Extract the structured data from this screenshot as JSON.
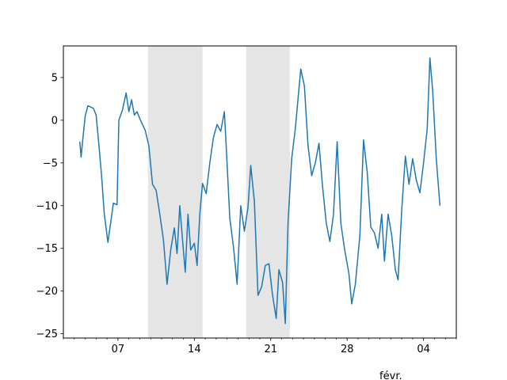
{
  "chart_data": {
    "type": "line",
    "title": "",
    "xlabel": "",
    "ylabel": "",
    "x_axis": "date",
    "xlim": [
      "2023-01-02",
      "2023-02-07"
    ],
    "ylim": [
      -25.5,
      8.7
    ],
    "yticks": [
      5,
      0,
      -5,
      -10,
      -15,
      -20,
      -25
    ],
    "ytick_labels": [
      "5",
      "0",
      "−5",
      "−10",
      "−15",
      "−20",
      "−25"
    ],
    "xticks": [
      {
        "x": "2023-01-07",
        "label": "07"
      },
      {
        "x": "2023-01-14",
        "label": "14"
      },
      {
        "x": "2023-01-21",
        "label": "21"
      },
      {
        "x": "2023-01-28",
        "label": "28"
      },
      {
        "x": "2023-02-04",
        "label": "04"
      }
    ],
    "month_label": {
      "x": "2023-02-01",
      "label": "févr."
    },
    "grid": false,
    "shaded_spans": [
      {
        "start": "2023-01-09 18:00",
        "end": "2023-01-14 18:00",
        "color": "#e5e5e5"
      },
      {
        "start": "2023-01-18 18:00",
        "end": "2023-01-22 18:00",
        "color": "#e5e5e5"
      }
    ],
    "series": [
      {
        "color": "#1f77b4",
        "points": [
          [
            "2023-01-03 12:00",
            -2.5
          ],
          [
            "2023-01-03 15:00",
            -4.3
          ],
          [
            "2023-01-03 18:00",
            -2.6
          ],
          [
            "2023-01-04 00:00",
            0.5
          ],
          [
            "2023-01-04 06:00",
            1.7
          ],
          [
            "2023-01-04 18:00",
            1.4
          ],
          [
            "2023-01-05 00:00",
            0.6
          ],
          [
            "2023-01-05 06:00",
            -2.8
          ],
          [
            "2023-01-05 12:00",
            -6.5
          ],
          [
            "2023-01-05 18:00",
            -11.0
          ],
          [
            "2023-01-06 02:00",
            -14.3
          ],
          [
            "2023-01-06 08:00",
            -12.0
          ],
          [
            "2023-01-06 14:00",
            -9.7
          ],
          [
            "2023-01-06 22:00",
            -9.9
          ],
          [
            "2023-01-07 02:00",
            0.0
          ],
          [
            "2023-01-07 10:00",
            1.2
          ],
          [
            "2023-01-07 18:00",
            3.2
          ],
          [
            "2023-01-08 00:00",
            1.0
          ],
          [
            "2023-01-08 06:00",
            2.4
          ],
          [
            "2023-01-08 12:00",
            0.6
          ],
          [
            "2023-01-08 18:00",
            1.0
          ],
          [
            "2023-01-09 00:00",
            0.2
          ],
          [
            "2023-01-09 12:00",
            -1.2
          ],
          [
            "2023-01-09 20:00",
            -3.0
          ],
          [
            "2023-01-10 04:00",
            -7.5
          ],
          [
            "2023-01-10 12:00",
            -8.2
          ],
          [
            "2023-01-10 20:00",
            -11.0
          ],
          [
            "2023-01-11 04:00",
            -14.0
          ],
          [
            "2023-01-11 12:00",
            -19.2
          ],
          [
            "2023-01-11 20:00",
            -15.2
          ],
          [
            "2023-01-12 04:00",
            -12.6
          ],
          [
            "2023-01-12 10:00",
            -15.6
          ],
          [
            "2023-01-12 16:00",
            -10.0
          ],
          [
            "2023-01-12 22:00",
            -14.0
          ],
          [
            "2023-01-13 04:00",
            -17.8
          ],
          [
            "2023-01-13 10:00",
            -11.0
          ],
          [
            "2023-01-13 16:00",
            -15.2
          ],
          [
            "2023-01-14 00:00",
            -14.4
          ],
          [
            "2023-01-14 06:00",
            -17.0
          ],
          [
            "2023-01-14 12:00",
            -11.0
          ],
          [
            "2023-01-14 18:00",
            -7.4
          ],
          [
            "2023-01-15 02:00",
            -8.6
          ],
          [
            "2023-01-15 10:00",
            -5.0
          ],
          [
            "2023-01-15 18:00",
            -2.0
          ],
          [
            "2023-01-16 02:00",
            -0.5
          ],
          [
            "2023-01-16 10:00",
            -1.3
          ],
          [
            "2023-01-16 18:00",
            1.0
          ],
          [
            "2023-01-16 22:00",
            -3.0
          ],
          [
            "2023-01-17 06:00",
            -11.5
          ],
          [
            "2023-01-17 14:00",
            -14.8
          ],
          [
            "2023-01-17 22:00",
            -19.2
          ],
          [
            "2023-01-18 06:00",
            -10.0
          ],
          [
            "2023-01-18 14:00",
            -13.0
          ],
          [
            "2023-01-18 22:00",
            -10.2
          ],
          [
            "2023-01-19 04:00",
            -5.3
          ],
          [
            "2023-01-19 12:00",
            -9.5
          ],
          [
            "2023-01-19 20:00",
            -20.5
          ],
          [
            "2023-01-20 04:00",
            -19.5
          ],
          [
            "2023-01-20 12:00",
            -17.0
          ],
          [
            "2023-01-20 20:00",
            -16.8
          ],
          [
            "2023-01-21 04:00",
            -20.5
          ],
          [
            "2023-01-21 12:00",
            -23.2
          ],
          [
            "2023-01-21 18:00",
            -17.5
          ],
          [
            "2023-01-22 02:00",
            -19.0
          ],
          [
            "2023-01-22 08:00",
            -23.8
          ],
          [
            "2023-01-22 14:00",
            -12.0
          ],
          [
            "2023-01-22 22:00",
            -4.5
          ],
          [
            "2023-01-23 06:00",
            -1.0
          ],
          [
            "2023-01-23 12:00",
            2.5
          ],
          [
            "2023-01-23 18:00",
            6.0
          ],
          [
            "2023-01-24 02:00",
            4.0
          ],
          [
            "2023-01-24 10:00",
            -3.0
          ],
          [
            "2023-01-24 18:00",
            -6.5
          ],
          [
            "2023-01-25 02:00",
            -5.0
          ],
          [
            "2023-01-25 10:00",
            -2.7
          ],
          [
            "2023-01-25 18:00",
            -7.8
          ],
          [
            "2023-01-26 02:00",
            -12.0
          ],
          [
            "2023-01-26 10:00",
            -14.2
          ],
          [
            "2023-01-26 18:00",
            -11.0
          ],
          [
            "2023-01-27 02:00",
            -2.5
          ],
          [
            "2023-01-27 10:00",
            -12.0
          ],
          [
            "2023-01-27 18:00",
            -15.0
          ],
          [
            "2023-01-28 04:00",
            -18.0
          ],
          [
            "2023-01-28 10:00",
            -21.5
          ],
          [
            "2023-01-28 18:00",
            -19.2
          ],
          [
            "2023-01-29 04:00",
            -13.5
          ],
          [
            "2023-01-29 12:00",
            -2.3
          ],
          [
            "2023-01-29 20:00",
            -6.0
          ],
          [
            "2023-01-30 04:00",
            -12.5
          ],
          [
            "2023-01-30 12:00",
            -13.2
          ],
          [
            "2023-01-30 20:00",
            -15.0
          ],
          [
            "2023-01-31 04:00",
            -11.0
          ],
          [
            "2023-01-31 10:00",
            -16.5
          ],
          [
            "2023-01-31 18:00",
            -11.0
          ],
          [
            "2023-02-01 02:00",
            -13.5
          ],
          [
            "2023-02-01 10:00",
            -17.5
          ],
          [
            "2023-02-01 16:00",
            -18.7
          ],
          [
            "2023-02-02 00:00",
            -10.5
          ],
          [
            "2023-02-02 08:00",
            -4.2
          ],
          [
            "2023-02-02 16:00",
            -7.5
          ],
          [
            "2023-02-03 00:00",
            -4.5
          ],
          [
            "2023-02-03 08:00",
            -7.0
          ],
          [
            "2023-02-03 16:00",
            -8.5
          ],
          [
            "2023-02-04 00:00",
            -5.0
          ],
          [
            "2023-02-04 08:00",
            -1.0
          ],
          [
            "2023-02-04 14:00",
            7.3
          ],
          [
            "2023-02-04 20:00",
            3.5
          ],
          [
            "2023-02-05 04:00",
            -4.5
          ],
          [
            "2023-02-05 12:00",
            -10.0
          ]
        ]
      }
    ]
  }
}
